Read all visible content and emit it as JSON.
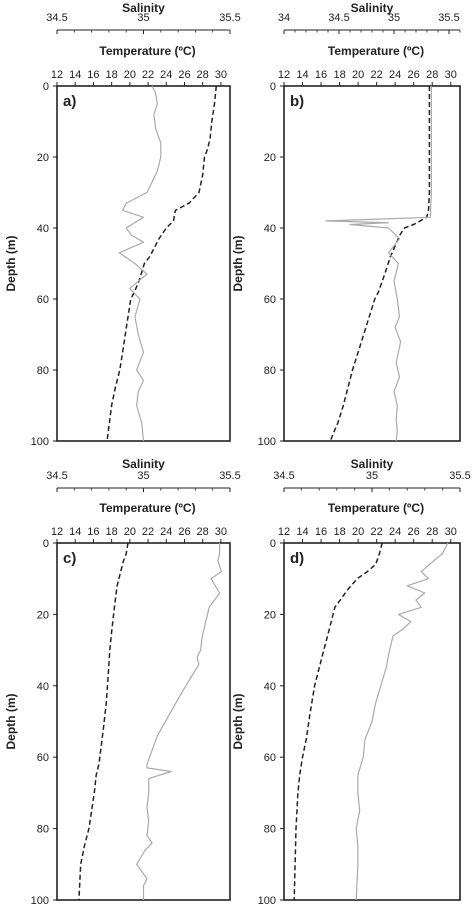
{
  "chart_data": [
    {
      "panel_label": "a)",
      "type": "line",
      "salinity_axis": {
        "label": "Salinity",
        "range": [
          34.5,
          35.5
        ],
        "ticks": [
          "34.5",
          "35",
          "35.5"
        ]
      },
      "temperature_axis": {
        "label": "Temperature (ºC)",
        "range": [
          12,
          31
        ],
        "ticks": [
          "12",
          "14",
          "16",
          "18",
          "20",
          "22",
          "24",
          "26",
          "28",
          "30"
        ]
      },
      "depth_axis": {
        "label": "Depth (m)",
        "range": [
          0,
          100
        ],
        "ticks": [
          "0",
          "20",
          "40",
          "60",
          "80",
          "100"
        ]
      },
      "series": [
        {
          "style": "dashed",
          "color": "#222222",
          "x_axis": "temperature",
          "x": [
            29.5,
            29.3,
            29.0,
            28.8,
            28.5,
            28.2,
            28.0,
            27.6,
            26.5,
            25.0,
            24.8,
            24.0,
            23.2,
            22.8,
            22.2,
            21.6,
            21.0,
            20.5,
            20.1,
            19.8,
            19.5,
            19.2,
            18.9,
            18.4,
            18.0,
            17.5
          ],
          "y": [
            0,
            5,
            10,
            15,
            18,
            20,
            25,
            30,
            33,
            35,
            38,
            40,
            43,
            45,
            48,
            50,
            55,
            58,
            60,
            65,
            70,
            75,
            80,
            85,
            90,
            100
          ]
        },
        {
          "style": "solid",
          "color": "#aaaaaa",
          "x_axis": "salinity",
          "x": [
            35.05,
            35.07,
            35.08,
            35.06,
            35.07,
            35.1,
            35.1,
            35.08,
            35.04,
            35.02,
            34.98,
            34.9,
            34.88,
            35.0,
            34.9,
            34.93,
            35.0,
            34.86,
            34.95,
            35.02,
            34.92,
            34.98,
            34.95,
            34.97,
            35.0,
            34.96,
            35.0,
            34.97,
            34.96,
            34.99,
            35.0
          ],
          "y": [
            0,
            2,
            5,
            8,
            12,
            16,
            20,
            24,
            28,
            30,
            31,
            33,
            35,
            37,
            40,
            42,
            44,
            47,
            50,
            53,
            57,
            60,
            65,
            70,
            75,
            80,
            83,
            86,
            90,
            95,
            100
          ]
        }
      ]
    },
    {
      "panel_label": "b)",
      "type": "line",
      "salinity_axis": {
        "label": "Salinity",
        "range": [
          34.0,
          35.6
        ],
        "ticks": [
          "34",
          "34.5",
          "35",
          "35.5"
        ]
      },
      "temperature_axis": {
        "label": "Temperature (ºC)",
        "range": [
          12,
          31
        ],
        "ticks": [
          "12",
          "14",
          "16",
          "18",
          "20",
          "22",
          "24",
          "26",
          "28",
          "30"
        ]
      },
      "depth_axis": {
        "label": "Depth (m)",
        "range": [
          0,
          100
        ],
        "ticks": [
          "0",
          "20",
          "40",
          "60",
          "80",
          "100"
        ]
      },
      "series": [
        {
          "style": "dashed",
          "color": "#222222",
          "x_axis": "temperature",
          "x": [
            27.7,
            27.7,
            27.7,
            27.7,
            27.6,
            27.4,
            26.0,
            25.0,
            24.5,
            24.0,
            23.5,
            23.0,
            22.6,
            22.2,
            21.8,
            21.2,
            20.6,
            20.0,
            19.4,
            18.9,
            18.4,
            17.8,
            17.3,
            17.0
          ],
          "y": [
            0,
            10,
            20,
            30,
            35,
            37,
            39,
            40,
            42,
            45,
            48,
            52,
            55,
            58,
            60,
            65,
            70,
            75,
            80,
            85,
            90,
            95,
            98,
            100
          ]
        },
        {
          "style": "solid",
          "color": "#aaaaaa",
          "x_axis": "salinity",
          "x": [
            35.34,
            35.34,
            35.34,
            35.34,
            35.33,
            34.38,
            34.95,
            34.6,
            34.95,
            35.05,
            34.95,
            35.04,
            35.0,
            35.03,
            35.05,
            35.01,
            35.06,
            35.02,
            35.05,
            35.0,
            35.03,
            35.02,
            35.03,
            35.02
          ],
          "y": [
            0,
            10,
            20,
            30,
            37,
            38,
            38.5,
            39,
            40,
            43,
            47,
            50,
            55,
            60,
            65,
            68,
            72,
            78,
            82,
            86,
            90,
            94,
            97,
            100
          ]
        }
      ]
    },
    {
      "panel_label": "c)",
      "type": "line",
      "salinity_axis": {
        "label": "Salinity",
        "range": [
          34.5,
          35.5
        ],
        "ticks": [
          "34.5",
          "35",
          "35.5"
        ]
      },
      "temperature_axis": {
        "label": "Temperature (ºC)",
        "range": [
          12,
          31
        ],
        "ticks": [
          "12",
          "14",
          "16",
          "18",
          "20",
          "22",
          "24",
          "26",
          "28",
          "30"
        ]
      },
      "depth_axis": {
        "label": "Depth (m)",
        "range": [
          0,
          100
        ],
        "ticks": [
          "0",
          "20",
          "40",
          "60",
          "80",
          "100"
        ]
      },
      "series": [
        {
          "style": "dashed",
          "color": "#222222",
          "x_axis": "temperature",
          "x": [
            19.8,
            19.6,
            19.3,
            19.0,
            18.6,
            18.3,
            18.0,
            17.8,
            17.6,
            17.4,
            17.1,
            16.8,
            16.6,
            16.3,
            16.1,
            15.8,
            15.5,
            15.0,
            14.6,
            14.4
          ],
          "y": [
            0,
            3,
            5,
            8,
            12,
            18,
            25,
            30,
            38,
            45,
            52,
            58,
            62,
            65,
            70,
            75,
            80,
            85,
            90,
            100
          ]
        },
        {
          "style": "solid",
          "color": "#aaaaaa",
          "x_axis": "salinity",
          "x": [
            35.44,
            35.44,
            35.43,
            35.45,
            35.39,
            35.44,
            35.38,
            35.36,
            35.34,
            35.33,
            35.31,
            35.32,
            35.27,
            35.22,
            35.15,
            35.08,
            35.05,
            35.02,
            35.02,
            35.16,
            35.03,
            35.03,
            35.02,
            35.03,
            35.02,
            35.05,
            35.01,
            34.96,
            35.02,
            35.0,
            35.0
          ],
          "y": [
            0,
            3,
            5,
            8,
            10,
            14,
            18,
            22,
            26,
            30,
            32,
            34,
            38,
            42,
            48,
            54,
            58,
            62,
            63,
            64,
            66,
            70,
            74,
            78,
            82,
            84,
            86,
            90,
            94,
            96,
            100
          ]
        }
      ]
    },
    {
      "panel_label": "d)",
      "type": "line",
      "salinity_axis": {
        "label": "Salinity",
        "range": [
          34.5,
          35.5
        ],
        "ticks": [
          "34.5",
          "35",
          "35.5"
        ]
      },
      "temperature_axis": {
        "label": "Temperature (ºC)",
        "range": [
          12,
          31
        ],
        "ticks": [
          "12",
          "14",
          "16",
          "18",
          "20",
          "22",
          "24",
          "26",
          "28",
          "30"
        ]
      },
      "depth_axis": {
        "label": "Depth (m)",
        "range": [
          0,
          100
        ],
        "ticks": [
          "0",
          "20",
          "40",
          "60",
          "80",
          "100"
        ]
      },
      "series": [
        {
          "style": "dashed",
          "color": "#222222",
          "x_axis": "temperature",
          "x": [
            22.6,
            22.3,
            21.9,
            21.0,
            19.9,
            18.9,
            17.5,
            16.8,
            16.3,
            15.8,
            15.3,
            14.8,
            14.4,
            14.0,
            13.7,
            13.5,
            13.3,
            13.2,
            13.1
          ],
          "y": [
            0,
            3,
            6,
            8,
            10,
            13,
            18,
            25,
            30,
            35,
            40,
            48,
            55,
            60,
            65,
            70,
            80,
            90,
            100
          ]
        },
        {
          "style": "solid",
          "color": "#aaaaaa",
          "x_axis": "salinity",
          "x": [
            35.43,
            35.4,
            35.35,
            35.28,
            35.32,
            35.2,
            35.3,
            35.25,
            35.28,
            35.15,
            35.22,
            35.18,
            35.12,
            35.1,
            35.08,
            35.05,
            35.02,
            35.0,
            34.96,
            34.95,
            34.92,
            34.92,
            34.93,
            34.91,
            34.92,
            34.92,
            34.91
          ],
          "y": [
            0,
            3,
            5,
            8,
            10,
            12,
            14,
            16,
            18,
            20,
            22,
            24,
            26,
            30,
            35,
            40,
            45,
            50,
            55,
            60,
            65,
            70,
            75,
            80,
            85,
            90,
            100
          ]
        }
      ]
    }
  ]
}
